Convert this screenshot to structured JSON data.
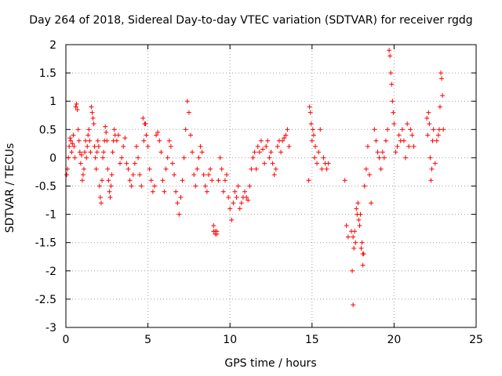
{
  "chart_data": {
    "type": "scatter",
    "title": "Day 264 of 2018, Sidereal Day-to-day VTEC variation (SDTVAR) for receiver rgdg",
    "xlabel": "GPS time / hours",
    "ylabel": "SDTVAR / TECUs",
    "xlim": [
      0,
      25
    ],
    "ylim": [
      -3,
      2
    ],
    "xticks": [
      "0",
      "5",
      "10",
      "15",
      "20",
      "25"
    ],
    "yticks": [
      "2",
      "1.5",
      "1",
      "0.5",
      "0",
      "-0.5",
      "-1",
      "-1.5",
      "-2",
      "-2.5",
      "-3"
    ],
    "grid": true,
    "marker": "+",
    "series": [
      {
        "name": "SDTVAR",
        "color": "#ff0000",
        "x": [
          0.05,
          0.1,
          0.15,
          0.2,
          0.25,
          0.3,
          0.35,
          0.4,
          0.45,
          0.5,
          0.55,
          0.6,
          0.65,
          0.7,
          0.75,
          0.8,
          0.85,
          0.9,
          0.95,
          1.0,
          1.05,
          1.1,
          1.15,
          1.2,
          1.25,
          1.3,
          1.35,
          1.4,
          1.45,
          1.5,
          1.55,
          1.6,
          1.65,
          1.7,
          1.75,
          1.8,
          1.85,
          1.9,
          1.95,
          2.0,
          2.05,
          2.1,
          2.15,
          2.2,
          2.25,
          2.3,
          2.35,
          2.4,
          2.45,
          2.5,
          2.55,
          2.6,
          2.65,
          2.7,
          2.75,
          2.8,
          2.85,
          2.9,
          2.95,
          3.0,
          3.1,
          3.2,
          3.3,
          3.4,
          3.5,
          3.6,
          3.7,
          3.8,
          3.9,
          4.0,
          4.1,
          4.2,
          4.3,
          4.4,
          4.5,
          4.6,
          4.7,
          4.8,
          4.9,
          5.0,
          5.1,
          5.2,
          5.3,
          5.4,
          5.5,
          5.6,
          5.7,
          5.8,
          5.9,
          6.0,
          6.1,
          6.2,
          6.3,
          6.4,
          6.5,
          6.6,
          6.7,
          6.8,
          6.9,
          7.0,
          7.1,
          7.2,
          7.3,
          7.4,
          7.5,
          7.6,
          7.7,
          7.8,
          7.9,
          8.0,
          8.1,
          8.2,
          8.3,
          8.4,
          8.5,
          8.6,
          8.7,
          8.8,
          8.9,
          9.0,
          9.1,
          9.2,
          9.3,
          9.4,
          9.5,
          9.6,
          9.7,
          9.8,
          9.9,
          10.0,
          10.1,
          10.2,
          10.3,
          10.4,
          10.5,
          10.6,
          10.7,
          10.8,
          10.9,
          11.0,
          11.1,
          11.2,
          11.3,
          11.4,
          11.5,
          11.6,
          11.7,
          11.8,
          11.9,
          12.0,
          12.1,
          12.2,
          12.3,
          12.4,
          12.5,
          12.6,
          12.7,
          12.8,
          12.9,
          13.0,
          13.1,
          13.2,
          13.3,
          13.4,
          13.5,
          13.6,
          14.8,
          14.85,
          14.9,
          14.95,
          15.0,
          15.05,
          15.1,
          15.15,
          15.2,
          15.3,
          15.4,
          15.5,
          15.6,
          15.7,
          15.8,
          15.9,
          16.0,
          17.0,
          17.1,
          17.2,
          17.4,
          17.45,
          17.5,
          17.55,
          17.6,
          17.65,
          17.7,
          17.75,
          17.8,
          17.85,
          17.9,
          17.95,
          18.0,
          18.05,
          18.1,
          18.15,
          18.2,
          18.3,
          18.4,
          18.5,
          18.6,
          18.8,
          18.9,
          19.0,
          19.1,
          19.2,
          19.3,
          19.4,
          19.5,
          19.6,
          19.7,
          19.75,
          19.8,
          19.85,
          19.9,
          19.95,
          20.0,
          20.1,
          20.2,
          20.3,
          20.4,
          20.5,
          20.6,
          20.7,
          20.8,
          20.9,
          21.0,
          21.1,
          21.2,
          22.0,
          22.05,
          22.1,
          22.15,
          22.2,
          22.25,
          22.3,
          22.35,
          22.4,
          22.5,
          22.6,
          22.7,
          22.75,
          22.8,
          22.85,
          22.9,
          22.95,
          23.0,
          4.75,
          4.85,
          9.0,
          9.1,
          9.2,
          18.1,
          17.5
        ],
        "y": [
          -0.3,
          -0.2,
          0.0,
          0.2,
          0.35,
          0.3,
          0.1,
          0.25,
          0.4,
          0.2,
          0.0,
          0.9,
          0.95,
          0.85,
          0.5,
          0.3,
          0.1,
          -0.1,
          0.05,
          -0.4,
          -0.3,
          -0.2,
          0.1,
          0.3,
          0.0,
          0.2,
          0.4,
          0.5,
          0.3,
          0.1,
          0.9,
          0.8,
          0.7,
          0.6,
          0.2,
          0.0,
          -0.2,
          0.1,
          0.3,
          0.2,
          -0.5,
          -0.7,
          -0.8,
          -0.4,
          0.0,
          0.1,
          0.3,
          0.55,
          0.45,
          0.3,
          -0.2,
          -0.4,
          -0.6,
          -0.7,
          -0.5,
          -0.3,
          0.1,
          0.3,
          0.5,
          0.4,
          0.3,
          0.4,
          -0.1,
          0.0,
          0.2,
          0.35,
          -0.1,
          -0.2,
          -0.4,
          -0.5,
          -0.3,
          -0.1,
          0.2,
          0.0,
          -0.3,
          -0.5,
          0.7,
          0.6,
          0.4,
          0.2,
          -0.2,
          -0.4,
          -0.6,
          -0.5,
          0.4,
          0.45,
          0.3,
          0.1,
          -0.4,
          -0.6,
          -0.2,
          0.0,
          0.3,
          0.2,
          -0.1,
          -0.3,
          -0.6,
          -0.8,
          -1.0,
          -0.7,
          -0.4,
          0.0,
          0.5,
          1.0,
          0.8,
          0.4,
          0.1,
          -0.3,
          -0.5,
          -0.2,
          0.0,
          0.2,
          0.1,
          -0.3,
          -0.5,
          -0.6,
          -0.3,
          -0.2,
          -0.4,
          -1.2,
          -1.3,
          -1.35,
          -0.4,
          0.0,
          -0.2,
          -0.6,
          -0.4,
          -0.3,
          -0.7,
          -0.9,
          -1.1,
          -0.8,
          -0.6,
          -0.7,
          -0.5,
          -0.9,
          -0.8,
          -0.7,
          -0.6,
          -0.7,
          -0.75,
          -0.5,
          -0.2,
          0.0,
          0.1,
          -0.2,
          0.2,
          0.1,
          0.3,
          0.15,
          -0.1,
          0.2,
          0.3,
          0.0,
          0.1,
          -0.1,
          -0.3,
          -0.2,
          0.2,
          0.3,
          0.1,
          0.3,
          0.35,
          0.4,
          0.5,
          0.2,
          -0.4,
          0.9,
          0.8,
          0.6,
          0.3,
          0.5,
          0.4,
          0.0,
          0.2,
          -0.1,
          0.1,
          0.5,
          -0.2,
          0.0,
          -0.1,
          -0.2,
          -0.1,
          -0.4,
          -1.2,
          -1.4,
          -1.3,
          -2.0,
          -2.6,
          -1.6,
          -1.3,
          -1.5,
          -0.9,
          -1.0,
          -0.8,
          -1.1,
          -1.2,
          -1.0,
          -1.6,
          -1.5,
          -1.9,
          -1.7,
          -0.5,
          -0.2,
          0.2,
          -0.3,
          -0.8,
          0.5,
          0.3,
          0.1,
          0.0,
          -0.2,
          0.1,
          0.0,
          0.3,
          0.5,
          1.9,
          1.8,
          1.5,
          1.3,
          1.0,
          0.8,
          0.6,
          0.1,
          0.2,
          0.4,
          0.3,
          0.5,
          0.3,
          0.0,
          0.6,
          0.2,
          0.5,
          0.4,
          0.2,
          0.7,
          0.4,
          0.8,
          0.6,
          0.0,
          -0.4,
          -0.2,
          0.3,
          0.5,
          -0.1,
          0.3,
          0.4,
          0.5,
          0.9,
          1.5,
          1.4,
          1.1,
          0.5,
          0.3,
          0.6,
          -1.3,
          -1.35,
          -1.3,
          -1.7,
          -1.4
        ]
      }
    ]
  }
}
